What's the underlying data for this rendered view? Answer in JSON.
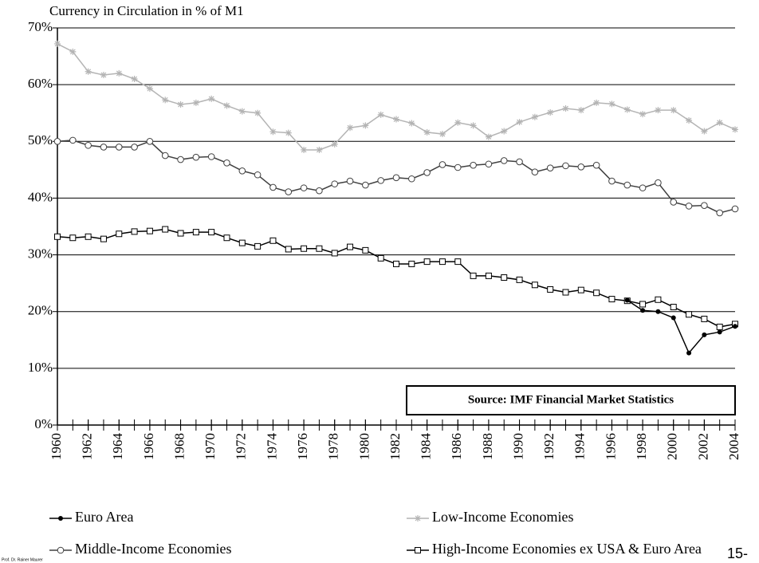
{
  "chart_data": {
    "type": "line",
    "title": "Currency in Circulation in % of M1",
    "annotation": "Source: IMF Financial Market Statistics",
    "x": [
      1960,
      1961,
      1962,
      1963,
      1964,
      1965,
      1966,
      1967,
      1968,
      1969,
      1970,
      1971,
      1972,
      1973,
      1974,
      1975,
      1976,
      1977,
      1978,
      1979,
      1980,
      1981,
      1982,
      1983,
      1984,
      1985,
      1986,
      1987,
      1988,
      1989,
      1990,
      1991,
      1992,
      1993,
      1994,
      1995,
      1996,
      1997,
      1998,
      1999,
      2000,
      2001,
      2002,
      2003,
      2004
    ],
    "xlim": [
      1960,
      2004
    ],
    "xticks": [
      1960,
      1962,
      1964,
      1966,
      1968,
      1970,
      1972,
      1974,
      1976,
      1978,
      1980,
      1982,
      1984,
      1986,
      1988,
      1990,
      1992,
      1994,
      1996,
      1998,
      2000,
      2002,
      2004
    ],
    "ylim": [
      0,
      70
    ],
    "yticks": [
      {
        "value": 0,
        "label": "0%"
      },
      {
        "value": 10,
        "label": "10%"
      },
      {
        "value": 20,
        "label": "20%"
      },
      {
        "value": 30,
        "label": "30%"
      },
      {
        "value": 40,
        "label": "40%"
      },
      {
        "value": 50,
        "label": "50%"
      },
      {
        "value": 60,
        "label": "60%"
      },
      {
        "value": 70,
        "label": "70%"
      }
    ],
    "grid": true,
    "series": [
      {
        "name": "Euro Area",
        "color": "#000000",
        "marker": "dot",
        "values": [
          null,
          null,
          null,
          null,
          null,
          null,
          null,
          null,
          null,
          null,
          null,
          null,
          null,
          null,
          null,
          null,
          null,
          null,
          null,
          null,
          null,
          null,
          null,
          null,
          null,
          null,
          null,
          null,
          null,
          null,
          null,
          null,
          null,
          null,
          null,
          null,
          null,
          22,
          20.2,
          20,
          18.9,
          12.7,
          15.9,
          16.4,
          17.4
        ]
      },
      {
        "name": "Low-Income Economies",
        "color": "#b4b4b4",
        "marker": "star",
        "values": [
          67.2,
          65.8,
          62.3,
          61.7,
          62,
          61,
          59.3,
          57.3,
          56.5,
          56.8,
          57.5,
          56.3,
          55.3,
          55,
          51.7,
          51.5,
          48.5,
          48.5,
          49.5,
          52.4,
          52.8,
          54.7,
          53.9,
          53.2,
          51.6,
          51.3,
          53.3,
          52.8,
          50.8,
          51.8,
          53.4,
          54.3,
          55.1,
          55.8,
          55.5,
          56.8,
          56.6,
          55.6,
          54.8,
          55.5,
          55.5,
          53.7,
          51.8,
          53.3,
          52.1
        ]
      },
      {
        "name": "Middle-Income Economies",
        "color": "#404040",
        "marker": "circle",
        "values": [
          50,
          50.2,
          49.3,
          49,
          49,
          49,
          50,
          47.5,
          46.8,
          47.2,
          47.3,
          46.2,
          44.8,
          44.1,
          41.9,
          41.1,
          41.8,
          41.3,
          42.5,
          43,
          42.3,
          43.1,
          43.6,
          43.4,
          44.5,
          45.9,
          45.4,
          45.8,
          46,
          46.6,
          46.4,
          44.6,
          45.3,
          45.7,
          45.5,
          45.8,
          43,
          42.3,
          41.8,
          42.7,
          39.3,
          38.6,
          38.7,
          37.4,
          38.1
        ]
      },
      {
        "name": "High-Income Economies ex USA & Euro Area",
        "color": "#000000",
        "marker": "square",
        "values": [
          33.2,
          33,
          33.2,
          32.8,
          33.7,
          34.1,
          34.2,
          34.5,
          33.8,
          34,
          34,
          33,
          32.1,
          31.5,
          32.5,
          31,
          31.1,
          31.1,
          30.3,
          31.4,
          30.8,
          29.4,
          28.4,
          28.4,
          28.8,
          28.8,
          28.8,
          26.3,
          26.3,
          26,
          25.6,
          24.7,
          23.9,
          23.4,
          23.8,
          23.3,
          22.2,
          21.9,
          21.3,
          22.1,
          20.8,
          19.5,
          18.7,
          17.3,
          17.8
        ]
      }
    ]
  },
  "page_number": "15-",
  "author": "Prof. Dr. Rainer Maurer"
}
